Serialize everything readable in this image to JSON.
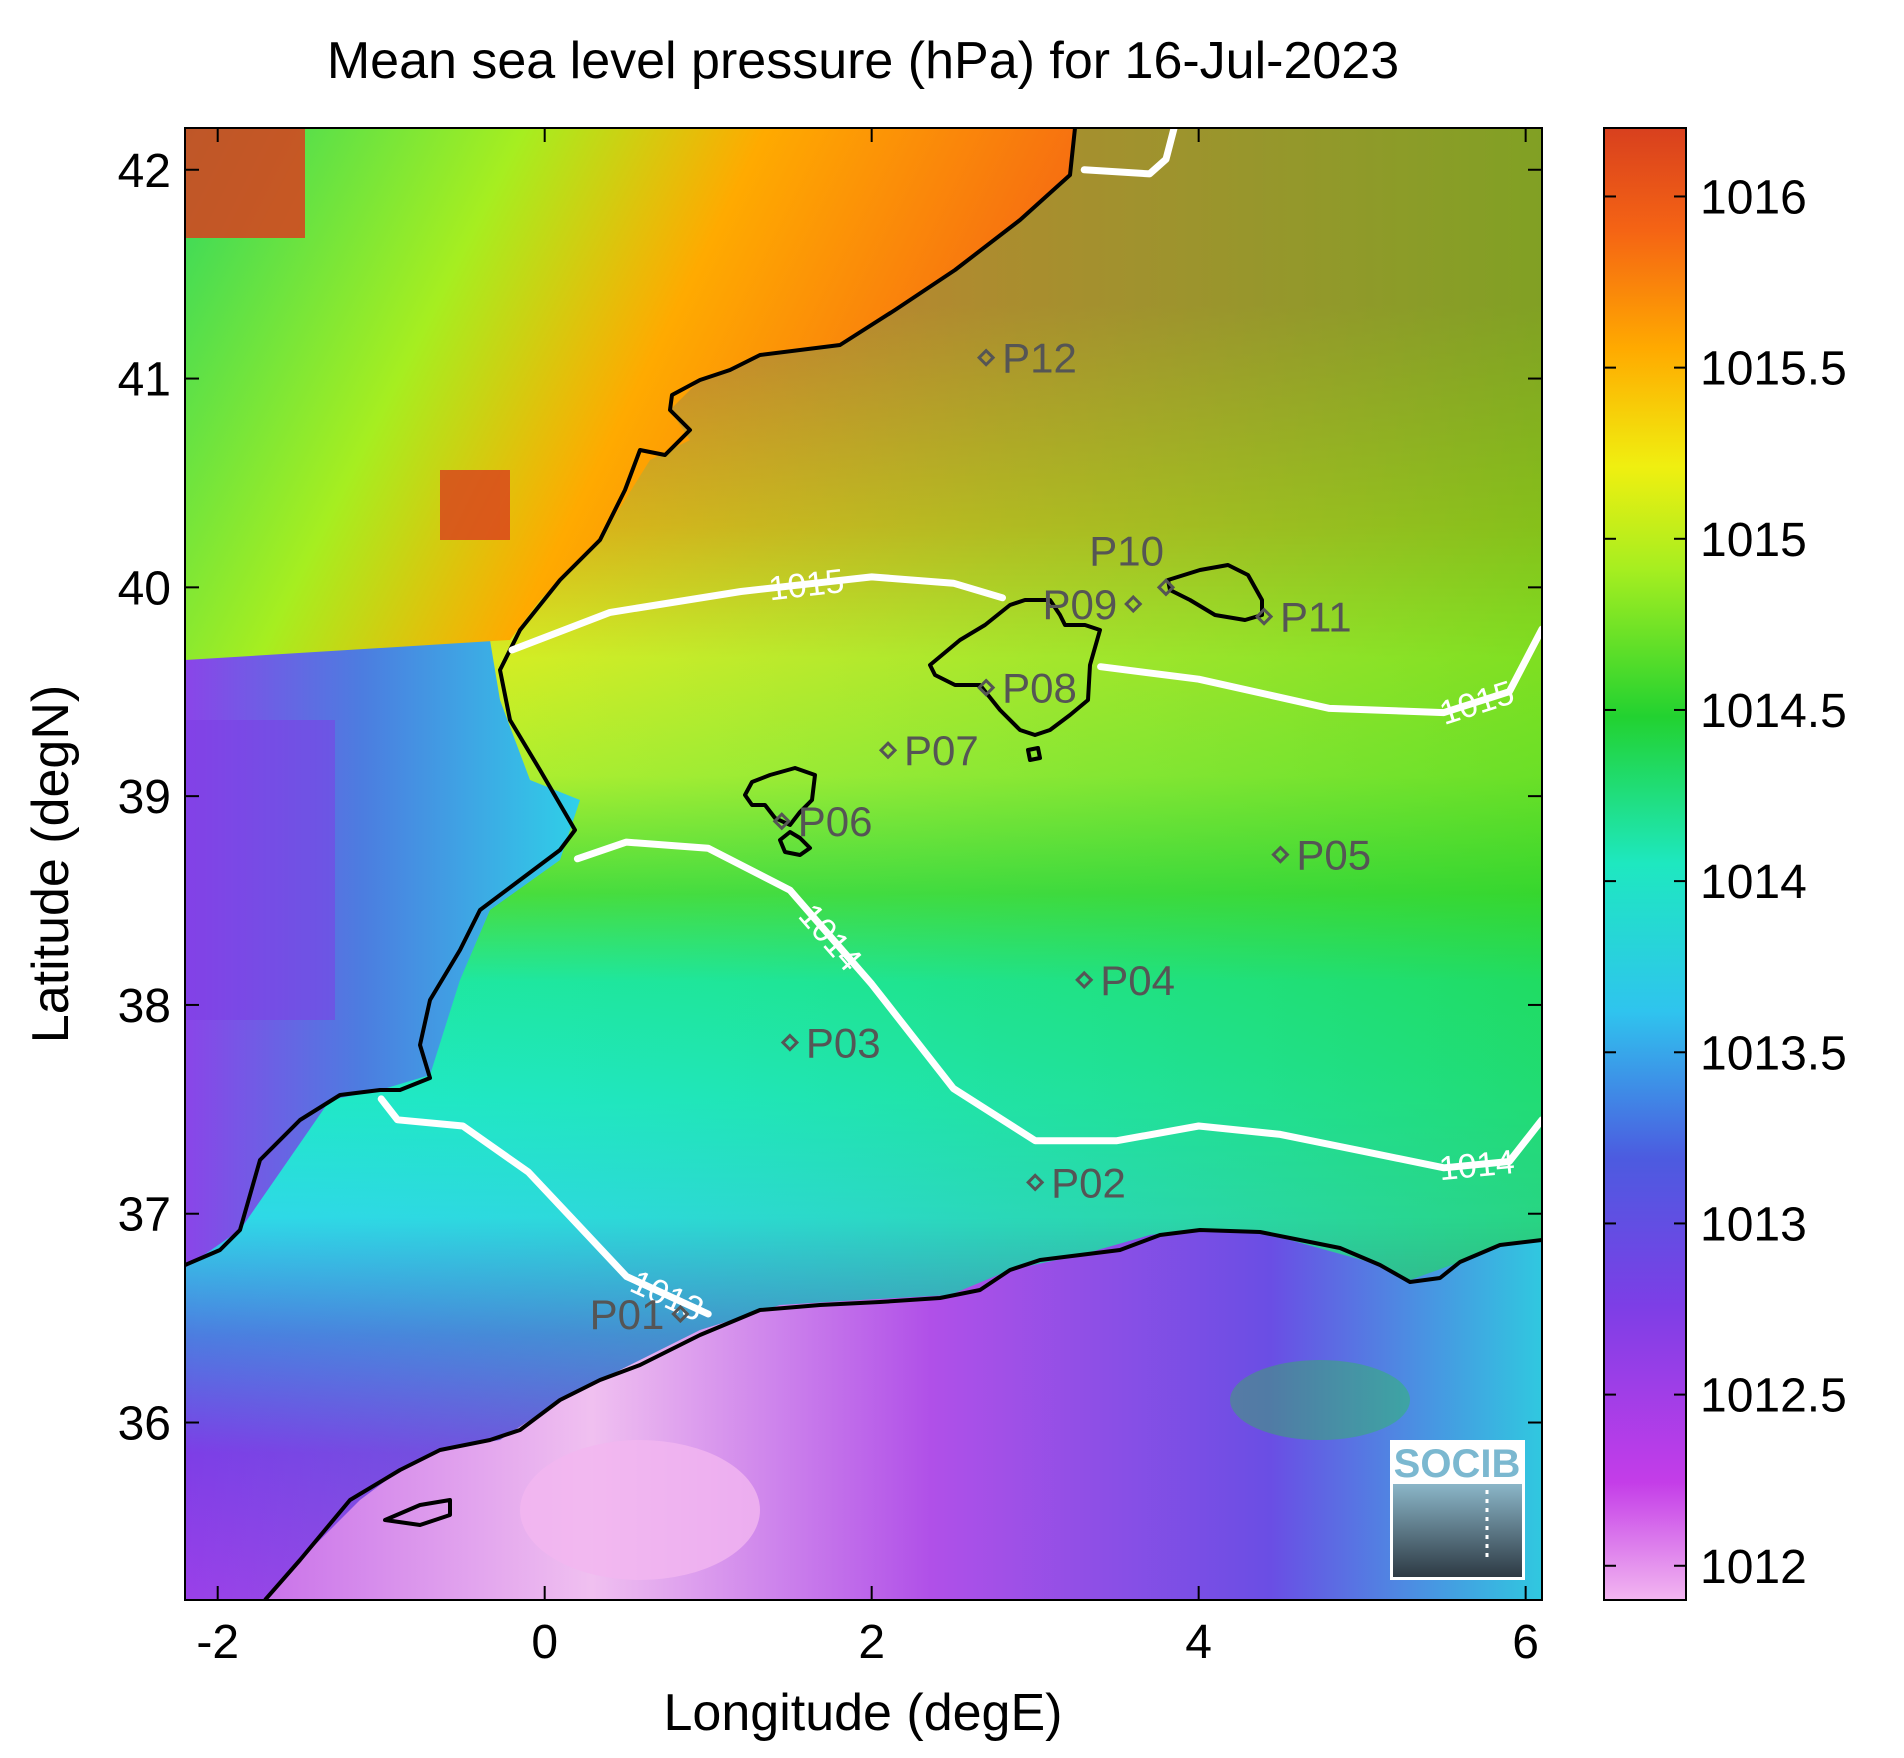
{
  "title": "Mean sea level pressure (hPa) for 16-Jul-2023",
  "x_axis": {
    "label": "Longitude (degE)",
    "range": [
      -2.2,
      6.1
    ],
    "ticks": [
      {
        "value": -2,
        "label": "-2"
      },
      {
        "value": 0,
        "label": "0"
      },
      {
        "value": 2,
        "label": "2"
      },
      {
        "value": 4,
        "label": "4"
      },
      {
        "value": 6,
        "label": "6"
      }
    ]
  },
  "y_axis": {
    "label": "Latitude (degN)",
    "range": [
      35.15,
      42.2
    ],
    "ticks": [
      {
        "value": 36,
        "label": "36"
      },
      {
        "value": 37,
        "label": "37"
      },
      {
        "value": 38,
        "label": "38"
      },
      {
        "value": 39,
        "label": "39"
      },
      {
        "value": 40,
        "label": "40"
      },
      {
        "value": 41,
        "label": "41"
      },
      {
        "value": 42,
        "label": "42"
      }
    ]
  },
  "colorbar": {
    "range": [
      1011.9,
      1016.2
    ],
    "ticks": [
      {
        "value": 1016,
        "label": "1016"
      },
      {
        "value": 1015.5,
        "label": "1015.5"
      },
      {
        "value": 1015,
        "label": "1015"
      },
      {
        "value": 1014.5,
        "label": "1014.5"
      },
      {
        "value": 1014,
        "label": "1014"
      },
      {
        "value": 1013.5,
        "label": "1013.5"
      },
      {
        "value": 1013,
        "label": "1013"
      },
      {
        "value": 1012.5,
        "label": "1012.5"
      },
      {
        "value": 1012,
        "label": "1012"
      }
    ],
    "colors": [
      "#f2b6f0",
      "#c43de8",
      "#7d3ee6",
      "#4c5be0",
      "#2fc4ee",
      "#1ee8c0",
      "#22d230",
      "#a6ee20",
      "#f0ef10",
      "#ffaa00",
      "#f56414",
      "#d8401e"
    ]
  },
  "points": [
    {
      "id": "P01",
      "lon": 0.83,
      "lat": 36.52
    },
    {
      "id": "P02",
      "lon": 3.0,
      "lat": 37.15
    },
    {
      "id": "P03",
      "lon": 1.5,
      "lat": 37.82
    },
    {
      "id": "P04",
      "lon": 3.3,
      "lat": 38.12
    },
    {
      "id": "P05",
      "lon": 4.5,
      "lat": 38.72
    },
    {
      "id": "P06",
      "lon": 1.45,
      "lat": 38.88
    },
    {
      "id": "P07",
      "lon": 2.1,
      "lat": 39.22
    },
    {
      "id": "P08",
      "lon": 2.7,
      "lat": 39.52
    },
    {
      "id": "P09",
      "lon": 3.6,
      "lat": 39.92
    },
    {
      "id": "P10",
      "lon": 3.8,
      "lat": 40.0
    },
    {
      "id": "P11",
      "lon": 4.4,
      "lat": 39.86
    },
    {
      "id": "P12",
      "lon": 2.7,
      "lat": 41.1
    }
  ],
  "contours": [
    {
      "level": 1015,
      "label": "1015",
      "lines": [
        [
          [
            -0.2,
            39.7
          ],
          [
            0.4,
            39.88
          ],
          [
            1.2,
            39.98
          ],
          [
            2.0,
            40.05
          ],
          [
            2.5,
            40.02
          ],
          [
            2.8,
            39.95
          ]
        ],
        [
          [
            3.4,
            39.62
          ],
          [
            4.0,
            39.56
          ],
          [
            4.8,
            39.42
          ],
          [
            5.5,
            39.4
          ],
          [
            5.9,
            39.5
          ],
          [
            6.1,
            39.8
          ]
        ],
        [
          [
            3.3,
            42.0
          ],
          [
            3.7,
            41.98
          ],
          [
            3.8,
            42.05
          ],
          [
            3.85,
            42.2
          ]
        ]
      ]
    },
    {
      "level": 1014,
      "label": "1014",
      "lines": [
        [
          [
            0.2,
            38.7
          ],
          [
            0.5,
            38.78
          ],
          [
            1.0,
            38.75
          ],
          [
            1.5,
            38.55
          ],
          [
            2.0,
            38.1
          ],
          [
            2.5,
            37.6
          ],
          [
            3.0,
            37.35
          ],
          [
            3.5,
            37.35
          ],
          [
            4.0,
            37.42
          ],
          [
            4.5,
            37.38
          ],
          [
            5.0,
            37.3
          ],
          [
            5.5,
            37.22
          ],
          [
            5.9,
            37.25
          ],
          [
            6.1,
            37.45
          ]
        ]
      ]
    },
    {
      "level": 1013,
      "label": "1013",
      "lines": [
        [
          [
            -1.0,
            37.55
          ],
          [
            -0.9,
            37.45
          ],
          [
            -0.5,
            37.42
          ],
          [
            -0.1,
            37.2
          ],
          [
            0.2,
            36.95
          ],
          [
            0.5,
            36.7
          ],
          [
            1.0,
            36.52
          ]
        ]
      ]
    }
  ],
  "logo": {
    "text": "SOCIB"
  }
}
